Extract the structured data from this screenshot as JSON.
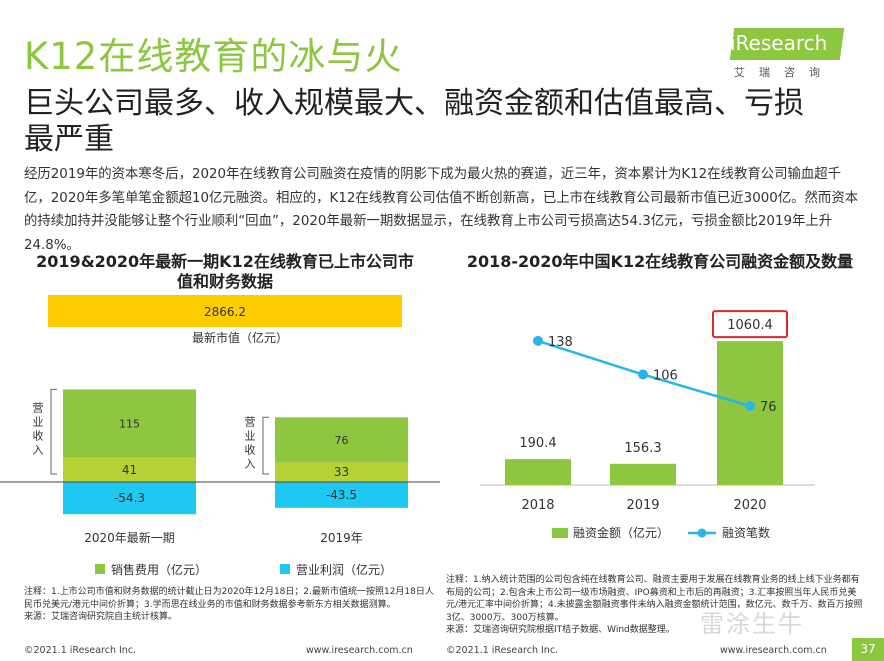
{
  "header": {
    "title": "K12在线教育的冰与火",
    "subtitle": "巨头公司最多、收入规模最大、融资金额和估值最高、亏损最严重",
    "logo_text": "iResearch",
    "logo_cn": "艾瑞咨询"
  },
  "body_text": "经历2019年的资本寒冬后，2020年在线教育公司融资在疫情的阴影下成为最火热的赛道，近三年，资本累计为K12在线教育公司输血超千亿，2020年多笔单笔金额超10亿元融资。相应的，K12在线教育公司估值不断创新高，已上市在线教育公司最新市值已近3000亿。然而资本的持续加持并没能够让整个行业顺利“回血”，2020年最新一期数据显示，在线教育上市公司亏损高达54.3亿元，亏损金额比2019年上升24.8%。",
  "colors": {
    "green": "#8dc63f",
    "light_green": "#b5d334",
    "yellow": "#ffcc00",
    "cyan": "#1ec8f0",
    "line_blue": "#2ab4e8",
    "red_box": "#e0262a"
  },
  "chart_data": [
    {
      "type": "bar",
      "title": "2019&2020年最新一期K12在线教育已上市公司市值和财务数据",
      "market_cap": {
        "value": 2866.2,
        "label": "最新市值（亿元）"
      },
      "categories": [
        "2020年最新一期",
        "2019年"
      ],
      "side_label": "营业收入",
      "series": [
        {
          "name": "销售费用（亿元）",
          "values": [
            41,
            33
          ]
        },
        {
          "name": "",
          "values": [
            115,
            76
          ]
        },
        {
          "name": "营业利润（亿元）",
          "values": [
            -54.3,
            -43.5
          ]
        }
      ],
      "legend": [
        "销售费用（亿元）",
        "营业利润（亿元）"
      ]
    },
    {
      "type": "bar+line",
      "title": "2018-2020年中国K12在线教育公司融资金额及数量",
      "categories": [
        "2018",
        "2019",
        "2020"
      ],
      "series": [
        {
          "name": "融资金额（亿元）",
          "type": "bar",
          "values": [
            190.4,
            156.3,
            1060.4
          ]
        },
        {
          "name": "融资笔数",
          "type": "line",
          "values": [
            138,
            106,
            76
          ]
        }
      ],
      "highlight": "1060.4"
    }
  ],
  "notes": {
    "left": "注释：1.上市公司市值和财务数据的统计截止日为2020年12月18日；2.最新市值统一按照12月18日人民币兑美元/港元中间价折算；3.学而思在线业务的市值和财务数据参考新东方相关数据测算。\n来源：艾瑞咨询研究院自主统计核算。",
    "right": "注释：1.纳入统计范围的公司包含纯在线教育公司、融资主要用于发展在线教育业务的线上线下业务都有布局的公司；2.包含未上市公司一级市场融资、IPO募资和上市后的再融资；3.汇率按照当年人民币兑美元/港元汇率中间价折算；4.未披露金额融资事件未纳入融资金额统计范围，数亿元、数千万、数百万按照3亿、3000万、300万核算。\n来源：艾瑞咨询研究院根据IT桔子数据、Wind数据整理。"
  },
  "footer": {
    "left_copyright": "©2021.1 iResearch Inc.",
    "left_url": "www.iresearch.com.cn",
    "right_copyright": "©2021.1 iResearch Inc.",
    "right_url": "www.iresearch.com.cn",
    "page_number": "37",
    "watermark": "雷涂生牛"
  }
}
